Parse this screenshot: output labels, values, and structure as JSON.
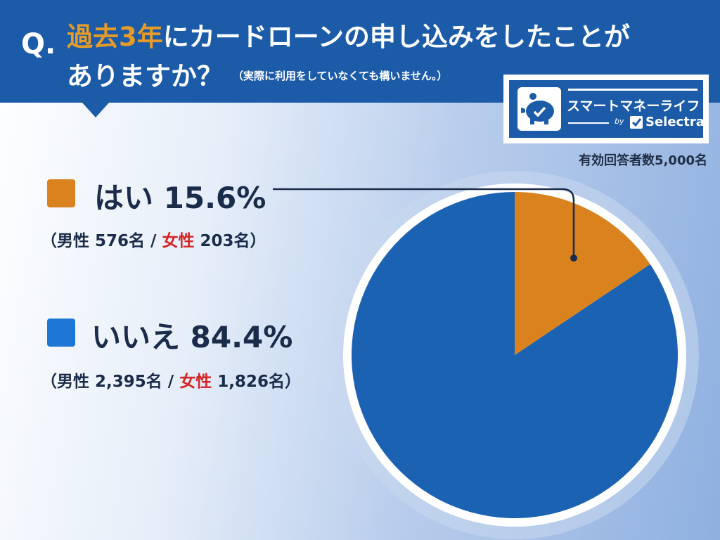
{
  "header": {
    "q_mark": "Q.",
    "title_highlight": "過去3年",
    "title_line1_rest": "にカードローンの申し込みをしたことが",
    "title_line2": "ありますか？",
    "title_note": "（実際に利用をしていなくても構いません。）"
  },
  "logo": {
    "name": "スマートマネーライフ",
    "by": "by",
    "brand": "Selectra",
    "icon": "piggy-bank-icon"
  },
  "respondents": "有効回答者数5,000名",
  "chart_data": {
    "type": "pie",
    "slices": [
      {
        "label": "はい",
        "percent_text": "15.6%",
        "value": 15.6,
        "color": "#d9821e",
        "sub_open": "（男性 576名 / ",
        "sub_female": "女性",
        "sub_close": " 203名）"
      },
      {
        "label": "いいえ",
        "percent_text": "84.4%",
        "value": 84.4,
        "color": "#1b62b3",
        "sub_open": "（男性 2,395名 / ",
        "sub_female": "女性",
        "sub_close": " 1,826名）"
      }
    ]
  },
  "colors": {
    "header_bg": "#1b5ba8",
    "accent_orange": "#e59b2a",
    "female_red": "#d42525",
    "yes_swatch": "#d9821e",
    "no_swatch": "#1d77d4"
  }
}
